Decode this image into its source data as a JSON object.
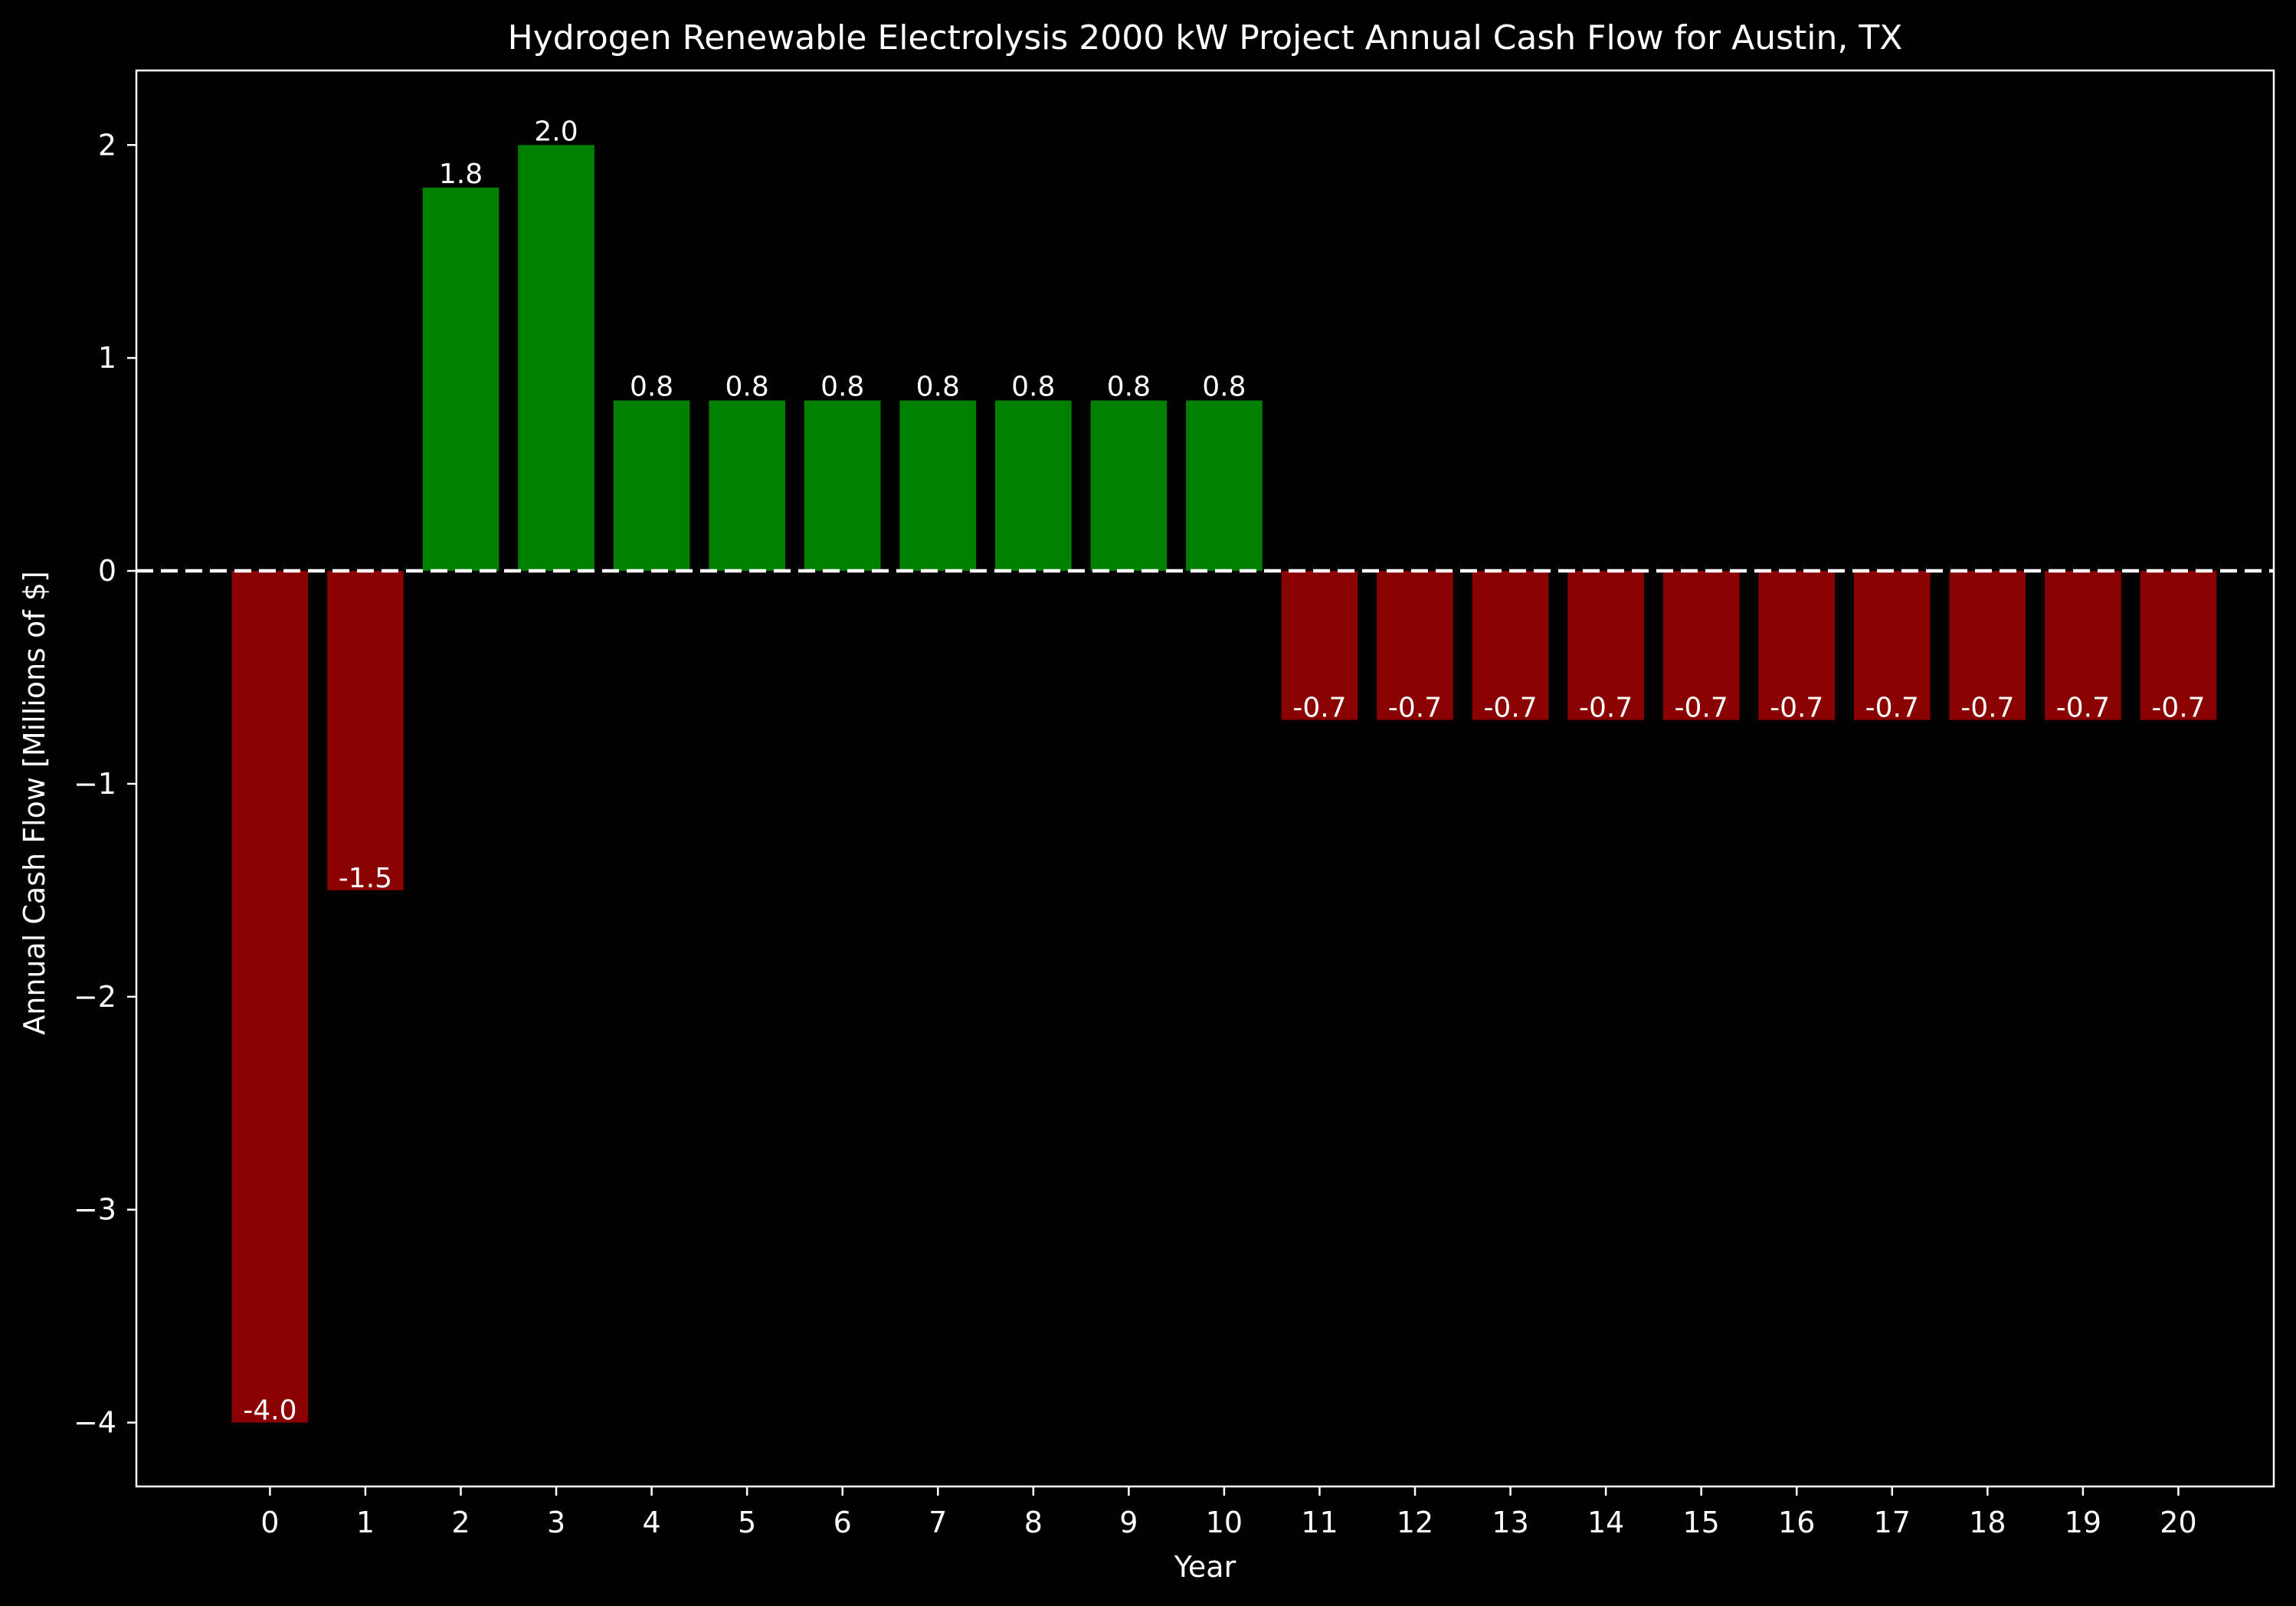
{
  "chart_data": {
    "type": "bar",
    "title": "Hydrogen Renewable Electrolysis 2000 kW Project Annual Cash Flow for Austin, TX",
    "xlabel": "Year",
    "ylabel": "Annual Cash Flow [Millions of $]",
    "categories": [
      "0",
      "1",
      "2",
      "3",
      "4",
      "5",
      "6",
      "7",
      "8",
      "9",
      "10",
      "11",
      "12",
      "13",
      "14",
      "15",
      "16",
      "17",
      "18",
      "19",
      "20"
    ],
    "values": [
      -4.0,
      -1.5,
      1.8,
      2.0,
      0.8,
      0.8,
      0.8,
      0.8,
      0.8,
      0.8,
      0.8,
      -0.7,
      -0.7,
      -0.7,
      -0.7,
      -0.7,
      -0.7,
      -0.7,
      -0.7,
      -0.7,
      -0.7
    ],
    "bar_labels": [
      "-4.0",
      "-1.5",
      "1.8",
      "2.0",
      "0.8",
      "0.8",
      "0.8",
      "0.8",
      "0.8",
      "0.8",
      "0.8",
      "-0.7",
      "-0.7",
      "-0.7",
      "-0.7",
      "-0.7",
      "-0.7",
      "-0.7",
      "-0.7",
      "-0.7",
      "-0.7"
    ],
    "yticks": [
      -4,
      -3,
      -2,
      -1,
      0,
      1,
      2
    ],
    "ytick_labels": [
      "−4",
      "−3",
      "−2",
      "−1",
      "0",
      "1",
      "2"
    ],
    "ylim": [
      -4.3,
      2.35
    ],
    "xlim": [
      -1.4,
      21.0
    ],
    "grid": false,
    "legend": "none",
    "reference_line": {
      "y": 0,
      "style": "dashed",
      "color": "#ffffff"
    },
    "colors": {
      "positive": "#008000",
      "negative": "#8b0000",
      "background": "#000000",
      "text": "#ffffff"
    }
  }
}
